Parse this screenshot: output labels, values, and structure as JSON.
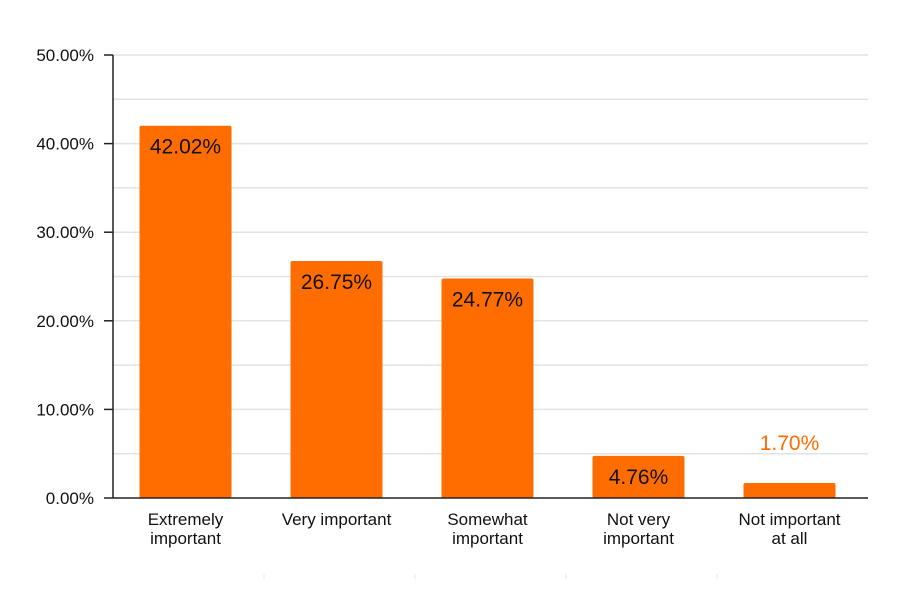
{
  "chart_data": {
    "type": "bar",
    "categories": [
      [
        "Extremely",
        "important"
      ],
      [
        "Very important"
      ],
      [
        "Somewhat",
        "important"
      ],
      [
        "Not very",
        "important"
      ],
      [
        "Not important",
        "at all"
      ]
    ],
    "values": [
      42.02,
      26.75,
      24.77,
      4.76,
      1.7
    ],
    "data_labels": [
      "42.02%",
      "26.75%",
      "24.77%",
      "4.76%",
      "1.70%"
    ],
    "ylim": [
      0,
      50
    ],
    "yticks": [
      0,
      10,
      20,
      30,
      40,
      50
    ],
    "ytick_labels": [
      "0.00%",
      "10.00%",
      "20.00%",
      "30.00%",
      "40.00%",
      "50.00%"
    ],
    "grid": true,
    "colors": {
      "bar": "#ff6d00",
      "label_inside": "#111111",
      "label_outside": "#ff6d00",
      "grid": "#e3e3e3",
      "axis": "#222222"
    }
  }
}
